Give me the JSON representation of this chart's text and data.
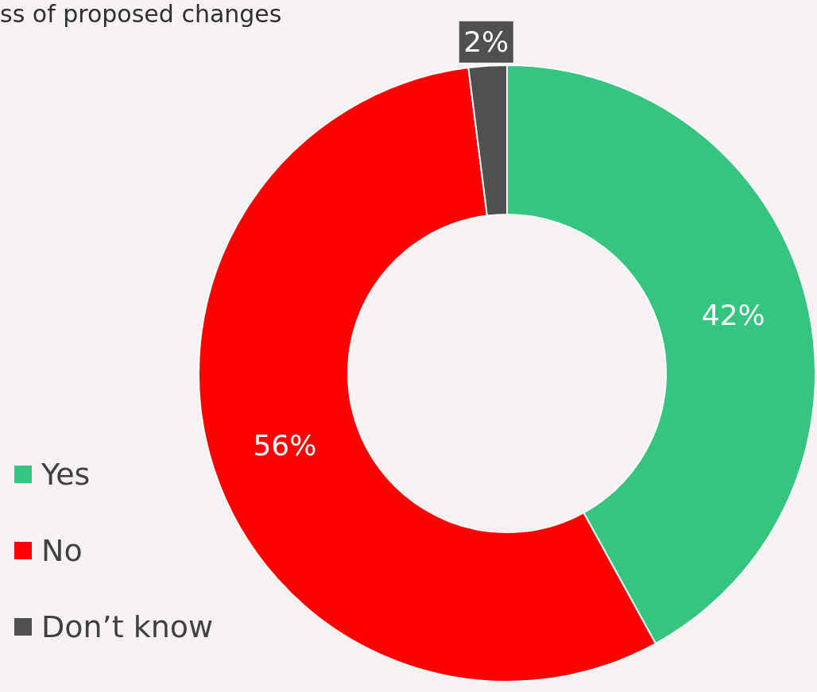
{
  "chart_data": {
    "type": "donut",
    "title": "ss of proposed changes",
    "categories": [
      "Yes",
      "No",
      "Don’t know"
    ],
    "values": [
      42,
      56,
      2
    ],
    "colors": [
      "#36c481",
      "#ff0000",
      "#505050"
    ],
    "value_labels": [
      "42%",
      "56%",
      "2%"
    ],
    "legend": "bottom left"
  }
}
